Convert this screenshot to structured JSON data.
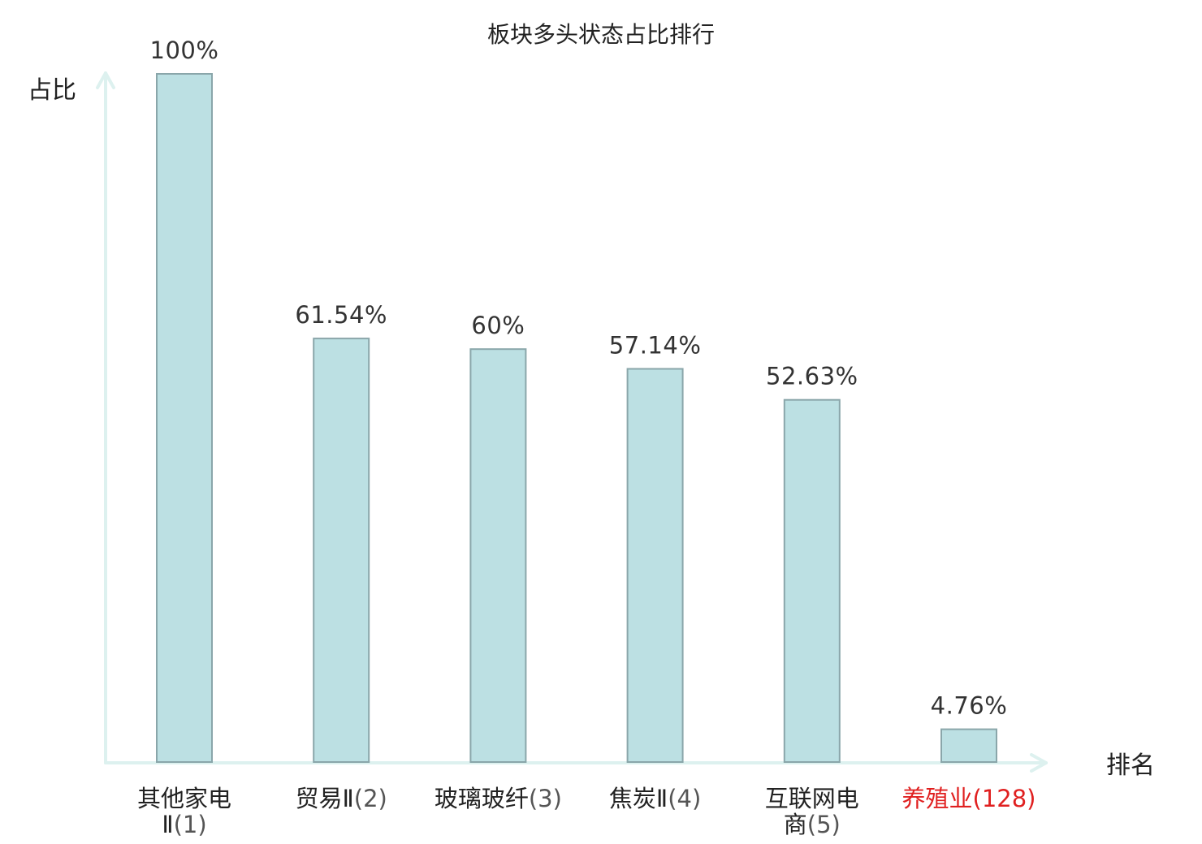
{
  "chart_data": {
    "type": "bar",
    "title": "板块多头状态占比排行",
    "ylabel": "占比",
    "xlabel": "排名",
    "ylim": [
      0,
      100
    ],
    "grid": false,
    "legend": "none",
    "bar_color": "#bce0e3",
    "bar_edge_color": "#8aa6aa",
    "axis_color": "#ddf1ef",
    "highlight_color": "#e02020",
    "categories": [
      {
        "lines": [
          [
            "其他家电",
            ""
          ],
          [
            "Ⅱ",
            "(1)"
          ]
        ],
        "highlight": false
      },
      {
        "lines": [
          [
            "贸易Ⅱ",
            "(2)"
          ]
        ],
        "highlight": false
      },
      {
        "lines": [
          [
            "玻璃玻纤",
            "(3)"
          ]
        ],
        "highlight": false
      },
      {
        "lines": [
          [
            "焦炭Ⅱ",
            "(4)"
          ]
        ],
        "highlight": false
      },
      {
        "lines": [
          [
            "互联网电",
            ""
          ],
          [
            "商",
            "(5)"
          ]
        ],
        "highlight": false
      },
      {
        "lines": [
          [
            "养殖业",
            "(128)"
          ]
        ],
        "highlight": true
      }
    ],
    "values": [
      100,
      61.54,
      60,
      57.14,
      52.63,
      4.76
    ],
    "value_labels": [
      "100%",
      "61.54%",
      "60%",
      "57.14%",
      "52.63%",
      "4.76%"
    ]
  }
}
